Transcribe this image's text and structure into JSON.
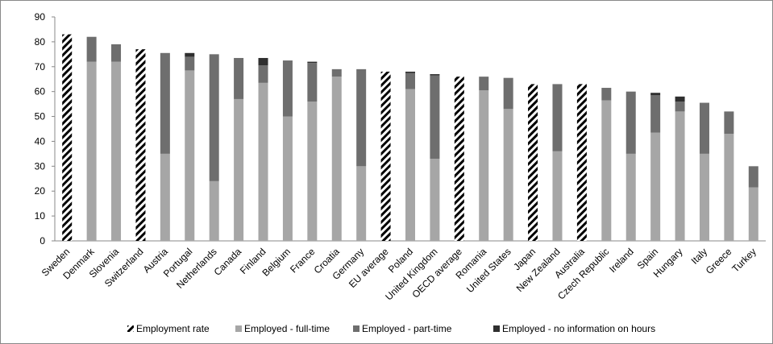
{
  "chart_data": {
    "type": "bar",
    "stacked": true,
    "categories": [
      "Sweden",
      "Denmark",
      "Slovenia",
      "Switzerland",
      "Austria",
      "Portugal",
      "Netherlands",
      "Canada",
      "Finland",
      "Belgium",
      "France",
      "Croatia",
      "Germany",
      "EU average",
      "Poland",
      "United Kingdom",
      "OECD average",
      "Romania",
      "United States",
      "Japan",
      "New Zealand",
      "Australia",
      "Czech Republic",
      "Ireland",
      "Spain",
      "Hungary",
      "Italy",
      "Greece",
      "Turkey"
    ],
    "series": [
      {
        "name": "Employment rate",
        "color": "#000000",
        "pattern": "hatch",
        "values": [
          83,
          null,
          null,
          77,
          null,
          null,
          null,
          null,
          null,
          null,
          null,
          null,
          null,
          68,
          null,
          null,
          66,
          null,
          null,
          63,
          null,
          63,
          null,
          null,
          null,
          null,
          null,
          null,
          null
        ]
      },
      {
        "name": "Employed - full-time",
        "color": "#a6a6a6",
        "values": [
          null,
          72,
          72,
          null,
          35,
          68.5,
          24,
          57,
          63.5,
          50,
          56,
          66,
          30,
          null,
          61,
          33,
          null,
          60.5,
          53,
          null,
          36,
          null,
          56.5,
          35,
          43.5,
          52,
          35,
          43,
          21.5
        ]
      },
      {
        "name": "Employed - part-time",
        "color": "#6e6e6e",
        "values": [
          null,
          10,
          7,
          null,
          40.5,
          5.5,
          51,
          16.5,
          7,
          22.5,
          15.5,
          3,
          39,
          null,
          6.5,
          33.5,
          null,
          5.5,
          12.5,
          null,
          27,
          null,
          5,
          25,
          15,
          4,
          20.5,
          9,
          8.5
        ]
      },
      {
        "name": "Employed - no information on hours",
        "color": "#2f2f2f",
        "values": [
          null,
          null,
          null,
          null,
          null,
          1.5,
          null,
          null,
          3,
          null,
          0.5,
          null,
          null,
          null,
          0.5,
          0.5,
          null,
          null,
          null,
          null,
          null,
          null,
          null,
          null,
          1,
          2,
          null,
          null,
          null
        ]
      }
    ],
    "ylim": [
      0,
      90
    ],
    "yticks": [
      0,
      10,
      20,
      30,
      40,
      50,
      60,
      70,
      80,
      90
    ],
    "grid": false,
    "legend": "bottom"
  }
}
